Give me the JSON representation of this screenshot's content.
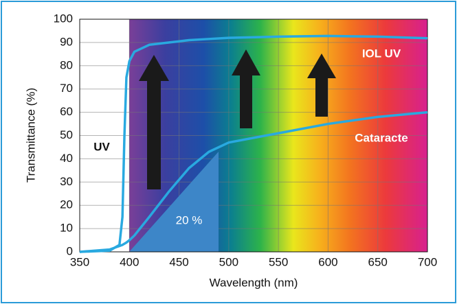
{
  "chart_data": {
    "type": "line",
    "xlabel": "Wavelength (nm)",
    "ylabel": "Transmittance (%)",
    "x": [
      350,
      380,
      390,
      393,
      395,
      397,
      400,
      405,
      420,
      440,
      450,
      460,
      480,
      500,
      550,
      600,
      650,
      700
    ],
    "series": [
      {
        "name": "IOL UV",
        "color": "#29a9e0",
        "values": [
          0,
          0.5,
          3,
          15,
          50,
          75,
          82,
          86,
          89,
          90,
          90.5,
          91,
          91.5,
          92,
          92.5,
          92.8,
          92.5,
          91.8
        ]
      },
      {
        "name": "Cataracte",
        "color": "#29a9e0",
        "values": [
          0,
          1,
          2.5,
          3,
          3.5,
          4,
          5,
          7,
          15,
          26,
          31,
          36,
          43,
          47,
          51,
          55,
          58,
          60
        ]
      }
    ],
    "annotations": [
      "UV",
      "20 %"
    ],
    "xlim": [
      350,
      700
    ],
    "xticks": [
      350,
      400,
      450,
      500,
      550,
      600,
      650,
      700
    ],
    "ylim": [
      0,
      100
    ],
    "yticks": [
      0,
      10,
      20,
      30,
      40,
      50,
      60,
      70,
      80,
      90,
      100
    ],
    "grid": true
  }
}
